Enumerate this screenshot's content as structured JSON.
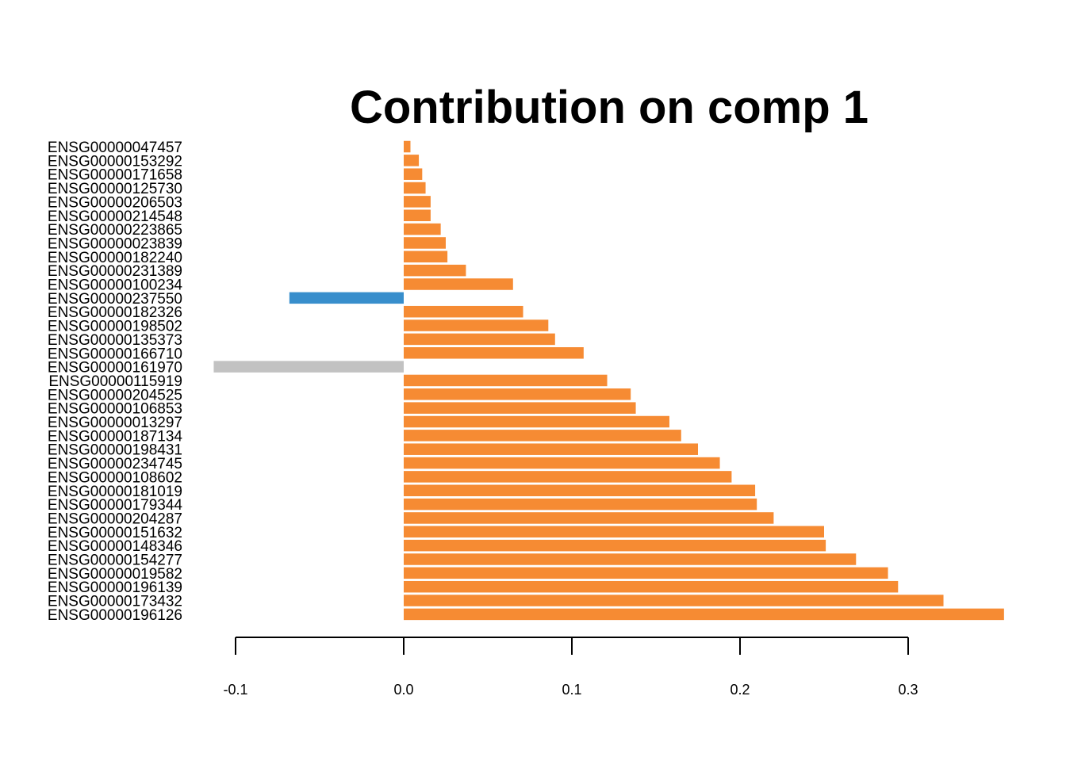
{
  "chart_data": {
    "type": "bar",
    "orientation": "horizontal",
    "title": "Contribution on comp 1",
    "xlabel": "",
    "ylabel": "",
    "xlim": [
      -0.1,
      0.36
    ],
    "xticks": [
      -0.1,
      0.0,
      0.1,
      0.2,
      0.3
    ],
    "xtick_labels": [
      "-0.1",
      "0.0",
      "0.1",
      "0.2",
      "0.3"
    ],
    "grid": false,
    "colors": {
      "positive": "#F68B33",
      "negative_blue": "#388ECC",
      "negative_grey": "#C2C2C2"
    },
    "categories": [
      "ENSG00000047457",
      "ENSG00000153292",
      "ENSG00000171658",
      "ENSG00000125730",
      "ENSG00000206503",
      "ENSG00000214548",
      "ENSG00000223865",
      "ENSG00000023839",
      "ENSG00000182240",
      "ENSG00000231389",
      "ENSG00000100234",
      "ENSG00000237550",
      "ENSG00000182326",
      "ENSG00000198502",
      "ENSG00000135373",
      "ENSG00000166710",
      "ENSG00000161970",
      "ENSG00000115919",
      "ENSG00000204525",
      "ENSG00000106853",
      "ENSG00000013297",
      "ENSG00000187134",
      "ENSG00000198431",
      "ENSG00000234745",
      "ENSG00000108602",
      "ENSG00000181019",
      "ENSG00000179344",
      "ENSG00000204287",
      "ENSG00000151632",
      "ENSG00000148346",
      "ENSG00000154277",
      "ENSG00000019582",
      "ENSG00000196139",
      "ENSG00000173432",
      "ENSG00000196126"
    ],
    "values": [
      0.004,
      0.009,
      0.011,
      0.013,
      0.016,
      0.016,
      0.022,
      0.025,
      0.026,
      0.037,
      0.065,
      -0.068,
      0.071,
      0.086,
      0.09,
      0.107,
      -0.113,
      0.121,
      0.135,
      0.138,
      0.158,
      0.165,
      0.175,
      0.188,
      0.195,
      0.209,
      0.21,
      0.22,
      0.25,
      0.251,
      0.269,
      0.288,
      0.294,
      0.321,
      0.357
    ],
    "bar_colors": [
      "#F68B33",
      "#F68B33",
      "#F68B33",
      "#F68B33",
      "#F68B33",
      "#F68B33",
      "#F68B33",
      "#F68B33",
      "#F68B33",
      "#F68B33",
      "#F68B33",
      "#388ECC",
      "#F68B33",
      "#F68B33",
      "#F68B33",
      "#F68B33",
      "#C2C2C2",
      "#F68B33",
      "#F68B33",
      "#F68B33",
      "#F68B33",
      "#F68B33",
      "#F68B33",
      "#F68B33",
      "#F68B33",
      "#F68B33",
      "#F68B33",
      "#F68B33",
      "#F68B33",
      "#F68B33",
      "#F68B33",
      "#F68B33",
      "#F68B33",
      "#F68B33",
      "#F68B33"
    ]
  }
}
